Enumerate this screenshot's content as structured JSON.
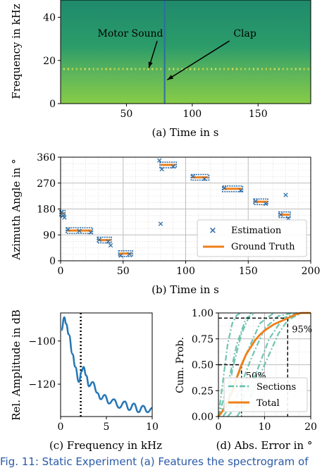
{
  "figure_caption": "Fig. 11: Static Experiment (a) Features the spectrogram of",
  "colors": {
    "estimation": "#2f6ea8",
    "ground_truth": "#ef7f1a",
    "line_c": "#2476b5",
    "sections": "#5fbfa8",
    "total": "#ef7f1a",
    "spec_dark": "#1f8a6c",
    "spec_light": "#86cc46",
    "clap_line": "#2d6da3"
  },
  "chart_data": [
    {
      "id": "a",
      "type": "heatmap",
      "xlabel": "(a) Time in s",
      "ylabel": "Frequency in kHz",
      "xlim": [
        0,
        190
      ],
      "ylim": [
        0,
        48
      ],
      "xticks": [
        50,
        100,
        150
      ],
      "yticks": [
        0,
        20,
        40
      ],
      "clap_time": 79,
      "motor_band_khz": 16,
      "annotations": [
        {
          "text": "Motor Sound",
          "x": 53,
          "y": 31,
          "arrow_to": [
            67,
            16.5
          ]
        },
        {
          "text": "Clap",
          "x": 140,
          "y": 31,
          "arrow_to": [
            81,
            11
          ]
        }
      ]
    },
    {
      "id": "b",
      "type": "scatter",
      "xlabel": "(b) Time in s",
      "ylabel": "Azimuth Angle in °",
      "xlim": [
        0,
        200
      ],
      "ylim": [
        0,
        360
      ],
      "xticks": [
        0,
        50,
        100,
        150,
        200
      ],
      "yticks": [
        0,
        90,
        180,
        270,
        360
      ],
      "grid": true,
      "legend": "lower-right",
      "series": [
        {
          "name": "Ground Truth",
          "segments": [
            [
              0,
              3,
              165
            ],
            [
              5,
              25,
              105
            ],
            [
              30,
              40,
              72
            ],
            [
              47,
              57,
              25
            ],
            [
              80,
              92,
              333
            ],
            [
              105,
              118,
              290
            ],
            [
              130,
              145,
              250
            ],
            [
              155,
              165,
              205
            ],
            [
              175,
              183,
              160
            ]
          ]
        },
        {
          "name": "Estimation",
          "points": [
            [
              1,
              170
            ],
            [
              2,
              158
            ],
            [
              3,
              152
            ],
            [
              6,
              110
            ],
            [
              15,
              105
            ],
            [
              24,
              100
            ],
            [
              31,
              75
            ],
            [
              38,
              68
            ],
            [
              40,
              55
            ],
            [
              48,
              20
            ],
            [
              55,
              25
            ],
            [
              79,
              350
            ],
            [
              80,
              130
            ],
            [
              81,
              320
            ],
            [
              90,
              330
            ],
            [
              106,
              295
            ],
            [
              115,
              287
            ],
            [
              131,
              255
            ],
            [
              144,
              246
            ],
            [
              156,
              208
            ],
            [
              164,
              200
            ],
            [
              176,
              162
            ],
            [
              180,
              230
            ],
            [
              182,
              150
            ]
          ]
        }
      ]
    },
    {
      "id": "c",
      "type": "line",
      "xlabel": "(c) Frequency in kHz",
      "ylabel": "Rel. Amplitude in dB",
      "xlim": [
        0,
        10
      ],
      "ylim": [
        -135,
        -87
      ],
      "xticks": [
        0,
        5,
        10
      ],
      "yticks": [
        -100,
        -120
      ],
      "vline_x": 2.2,
      "x": [
        0.1,
        0.4,
        0.6,
        0.9,
        1.3,
        1.6,
        2.0,
        2.3,
        2.5,
        2.8,
        3.1,
        3.5,
        4.0,
        4.4,
        4.8,
        5.3,
        5.8,
        6.4,
        7.0,
        7.5,
        8.0,
        8.5,
        9.0,
        9.5,
        10.0
      ],
      "y": [
        -95,
        -89,
        -92,
        -97,
        -106,
        -112,
        -119,
        -114,
        -112,
        -116,
        -121,
        -119,
        -124,
        -127,
        -125,
        -129,
        -127,
        -131,
        -128,
        -132,
        -129,
        -133,
        -130,
        -133,
        -131
      ]
    },
    {
      "id": "d",
      "type": "line",
      "xlabel": "(d) Abs. Error in °",
      "ylabel": "Cum. Prob.",
      "xlim": [
        0,
        20
      ],
      "ylim": [
        0,
        1
      ],
      "xticks": [
        0,
        10,
        20
      ],
      "yticks": [
        0.0,
        0.25,
        0.5,
        0.75,
        1.0
      ],
      "grid": true,
      "legend": "lower-right",
      "annotations": [
        {
          "text": "50%",
          "x": 5,
          "y": 0.5
        },
        {
          "text": "95%",
          "x": 15,
          "y": 0.95
        }
      ],
      "series": [
        {
          "name": "Total",
          "x": [
            0,
            1,
            2,
            3,
            4,
            5,
            6,
            7,
            8,
            9,
            10,
            11,
            12,
            13,
            14,
            15,
            16,
            17,
            18,
            20
          ],
          "y": [
            0,
            0.06,
            0.14,
            0.24,
            0.38,
            0.5,
            0.6,
            0.67,
            0.74,
            0.79,
            0.83,
            0.86,
            0.89,
            0.91,
            0.93,
            0.95,
            0.97,
            0.99,
            1.0,
            1.0
          ]
        },
        {
          "name": "Sections",
          "curves": [
            {
              "x": [
                0,
                1,
                2,
                3,
                4,
                5
              ],
              "y": [
                0,
                0.35,
                0.7,
                0.9,
                0.98,
                1
              ]
            },
            {
              "x": [
                0,
                2,
                4,
                6,
                8
              ],
              "y": [
                0,
                0.3,
                0.7,
                0.95,
                1
              ]
            },
            {
              "x": [
                0,
                3,
                6,
                9,
                12
              ],
              "y": [
                0,
                0.25,
                0.6,
                0.9,
                1
              ]
            },
            {
              "x": [
                1,
                4,
                7,
                10,
                13,
                16
              ],
              "y": [
                0,
                0.2,
                0.55,
                0.85,
                0.97,
                1
              ]
            },
            {
              "x": [
                2,
                5,
                8,
                11,
                14,
                17
              ],
              "y": [
                0,
                0.15,
                0.4,
                0.75,
                0.95,
                1
              ]
            },
            {
              "x": [
                0,
                2,
                3,
                5,
                7
              ],
              "y": [
                0,
                0.1,
                0.45,
                0.8,
                1
              ]
            },
            {
              "x": [
                4,
                7,
                10,
                13,
                15,
                18
              ],
              "y": [
                0,
                0.2,
                0.5,
                0.8,
                0.93,
                1
              ]
            }
          ]
        }
      ]
    }
  ]
}
